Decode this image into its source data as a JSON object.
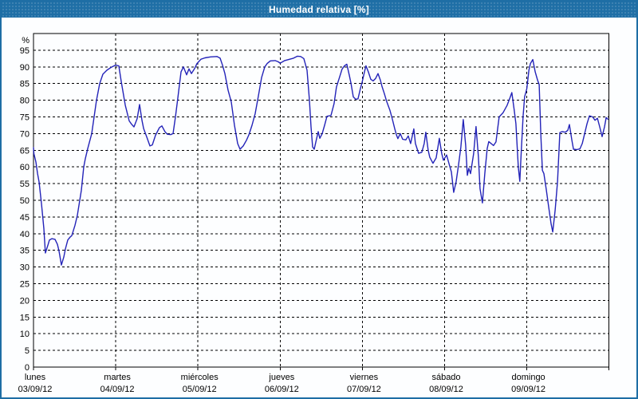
{
  "window": {
    "title": "Humedad relativa [%]"
  },
  "colors": {
    "titlebar_bg": "#1f6fa6",
    "titlebar_text": "#ffffff",
    "window_border": "#1e6ea5",
    "plot_bg": "#fdfeff",
    "grid": "#000000",
    "axis": "#000000",
    "line": "#2323b8"
  },
  "chart_data": {
    "type": "line",
    "title": "Humedad relativa [%]",
    "ylabel": "%",
    "xlabel": "",
    "ylim": [
      0,
      100
    ],
    "yticks": [
      0,
      5,
      10,
      15,
      20,
      25,
      30,
      35,
      40,
      45,
      50,
      55,
      60,
      65,
      70,
      75,
      80,
      85,
      90,
      95
    ],
    "grid": true,
    "grid_style": "dashed",
    "legend": false,
    "x_unit": "days_from_monday",
    "xlim": [
      0,
      7
    ],
    "xticklabels": [
      {
        "day": "lunes",
        "date": "03/09/12"
      },
      {
        "day": "martes",
        "date": "04/09/12"
      },
      {
        "day": "miércoles",
        "date": "05/09/12"
      },
      {
        "day": "jueves",
        "date": "06/09/12"
      },
      {
        "day": "viernes",
        "date": "07/09/12"
      },
      {
        "day": "sábado",
        "date": "08/09/12"
      },
      {
        "day": "domingo",
        "date": "09/09/12"
      }
    ],
    "series": [
      {
        "name": "Humedad relativa [%]",
        "points": [
          [
            0.0,
            65.8
          ],
          [
            0.005,
            64.0
          ],
          [
            0.029,
            61.5
          ],
          [
            0.049,
            58.0
          ],
          [
            0.068,
            55.5
          ],
          [
            0.097,
            49.0
          ],
          [
            0.126,
            41.5
          ],
          [
            0.145,
            34.2
          ],
          [
            0.175,
            36.5
          ],
          [
            0.194,
            38.1
          ],
          [
            0.223,
            38.5
          ],
          [
            0.262,
            38.3
          ],
          [
            0.291,
            36.8
          ],
          [
            0.31,
            34.8
          ],
          [
            0.339,
            30.6
          ],
          [
            0.369,
            33.0
          ],
          [
            0.388,
            35.4
          ],
          [
            0.417,
            38.1
          ],
          [
            0.446,
            39.0
          ],
          [
            0.466,
            39.4
          ],
          [
            0.504,
            42.5
          ],
          [
            0.533,
            45.5
          ],
          [
            0.563,
            50.0
          ],
          [
            0.582,
            53.0
          ],
          [
            0.611,
            60.0
          ],
          [
            0.63,
            62.5
          ],
          [
            0.66,
            65.5
          ],
          [
            0.708,
            70.0
          ],
          [
            0.737,
            75.0
          ],
          [
            0.766,
            80.0
          ],
          [
            0.805,
            85.0
          ],
          [
            0.844,
            87.8
          ],
          [
            0.892,
            89.0
          ],
          [
            0.941,
            89.8
          ],
          [
            0.97,
            90.2
          ],
          [
            1.0,
            90.5
          ],
          [
            1.038,
            90.3
          ],
          [
            1.068,
            85.5
          ],
          [
            1.116,
            78.5
          ],
          [
            1.164,
            73.8
          ],
          [
            1.193,
            72.8
          ],
          [
            1.222,
            72.0
          ],
          [
            1.261,
            74.5
          ],
          [
            1.29,
            78.7
          ],
          [
            1.319,
            74.0
          ],
          [
            1.339,
            71.5
          ],
          [
            1.377,
            69.0
          ],
          [
            1.416,
            66.3
          ],
          [
            1.445,
            66.6
          ],
          [
            1.484,
            69.5
          ],
          [
            1.532,
            71.8
          ],
          [
            1.562,
            72.3
          ],
          [
            1.6,
            70.5
          ],
          [
            1.629,
            69.8
          ],
          [
            1.668,
            69.7
          ],
          [
            1.697,
            70.0
          ],
          [
            1.726,
            75.0
          ],
          [
            1.755,
            80.5
          ],
          [
            1.794,
            88.5
          ],
          [
            1.823,
            90.0
          ],
          [
            1.862,
            87.6
          ],
          [
            1.891,
            89.4
          ],
          [
            1.92,
            88.0
          ],
          [
            1.959,
            89.5
          ],
          [
            1.988,
            91.0
          ],
          [
            2.037,
            92.3
          ],
          [
            2.085,
            92.7
          ],
          [
            2.153,
            93.0
          ],
          [
            2.231,
            93.1
          ],
          [
            2.27,
            92.6
          ],
          [
            2.299,
            90.5
          ],
          [
            2.328,
            88.0
          ],
          [
            2.367,
            83.0
          ],
          [
            2.405,
            79.5
          ],
          [
            2.444,
            72.5
          ],
          [
            2.483,
            67.0
          ],
          [
            2.512,
            65.3
          ],
          [
            2.551,
            66.3
          ],
          [
            2.59,
            68.0
          ],
          [
            2.619,
            69.6
          ],
          [
            2.658,
            72.5
          ],
          [
            2.696,
            76.0
          ],
          [
            2.735,
            81.3
          ],
          [
            2.774,
            86.8
          ],
          [
            2.813,
            90.0
          ],
          [
            2.842,
            91.0
          ],
          [
            2.881,
            91.8
          ],
          [
            2.939,
            91.9
          ],
          [
            2.978,
            91.5
          ],
          [
            3.0,
            91.1
          ],
          [
            3.055,
            91.9
          ],
          [
            3.104,
            92.2
          ],
          [
            3.162,
            92.6
          ],
          [
            3.21,
            93.2
          ],
          [
            3.249,
            93.1
          ],
          [
            3.288,
            92.5
          ],
          [
            3.327,
            89.0
          ],
          [
            3.356,
            80.0
          ],
          [
            3.375,
            72.0
          ],
          [
            3.395,
            66.0
          ],
          [
            3.414,
            65.3
          ],
          [
            3.443,
            68.5
          ],
          [
            3.463,
            70.6
          ],
          [
            3.482,
            68.6
          ],
          [
            3.511,
            70.0
          ],
          [
            3.54,
            72.5
          ],
          [
            3.569,
            75.2
          ],
          [
            3.618,
            75.4
          ],
          [
            3.656,
            79.0
          ],
          [
            3.685,
            84.0
          ],
          [
            3.724,
            87.0
          ],
          [
            3.753,
            89.3
          ],
          [
            3.782,
            90.3
          ],
          [
            3.811,
            90.8
          ],
          [
            3.841,
            87.5
          ],
          [
            3.86,
            85.2
          ],
          [
            3.889,
            81.0
          ],
          [
            3.918,
            80.3
          ],
          [
            3.947,
            80.4
          ],
          [
            3.976,
            83.5
          ],
          [
            3.996,
            85.3
          ],
          [
            4.025,
            88.5
          ],
          [
            4.044,
            90.3
          ],
          [
            4.073,
            88.5
          ],
          [
            4.102,
            86.3
          ],
          [
            4.131,
            85.8
          ],
          [
            4.16,
            86.5
          ],
          [
            4.19,
            88.0
          ],
          [
            4.219,
            86.0
          ],
          [
            4.238,
            84.2
          ],
          [
            4.267,
            82.0
          ],
          [
            4.296,
            79.6
          ],
          [
            4.335,
            77.0
          ],
          [
            4.364,
            74.4
          ],
          [
            4.393,
            71.5
          ],
          [
            4.413,
            69.7
          ],
          [
            4.432,
            68.5
          ],
          [
            4.461,
            70.0
          ],
          [
            4.49,
            68.3
          ],
          [
            4.529,
            68.1
          ],
          [
            4.558,
            69.3
          ],
          [
            4.587,
            67.0
          ],
          [
            4.626,
            71.4
          ],
          [
            4.645,
            67.0
          ],
          [
            4.684,
            64.1
          ],
          [
            4.723,
            64.4
          ],
          [
            4.752,
            67.0
          ],
          [
            4.771,
            70.4
          ],
          [
            4.8,
            65.0
          ],
          [
            4.82,
            62.9
          ],
          [
            4.858,
            61.1
          ],
          [
            4.897,
            62.7
          ],
          [
            4.936,
            68.6
          ],
          [
            4.965,
            64.0
          ],
          [
            4.985,
            62.0
          ],
          [
            5.024,
            63.6
          ],
          [
            5.053,
            61.0
          ],
          [
            5.082,
            58.5
          ],
          [
            5.111,
            52.4
          ],
          [
            5.14,
            55.5
          ],
          [
            5.169,
            60.5
          ],
          [
            5.198,
            66.0
          ],
          [
            5.227,
            74.2
          ],
          [
            5.256,
            66.5
          ],
          [
            5.276,
            57.5
          ],
          [
            5.295,
            59.6
          ],
          [
            5.315,
            58.0
          ],
          [
            5.353,
            64.0
          ],
          [
            5.382,
            72.1
          ],
          [
            5.411,
            63.0
          ],
          [
            5.431,
            53.5
          ],
          [
            5.46,
            49.2
          ],
          [
            5.489,
            58.0
          ],
          [
            5.518,
            65.5
          ],
          [
            5.537,
            67.6
          ],
          [
            5.566,
            67.0
          ],
          [
            5.595,
            66.4
          ],
          [
            5.625,
            67.5
          ],
          [
            5.663,
            75.0
          ],
          [
            5.712,
            76.3
          ],
          [
            5.76,
            78.5
          ],
          [
            5.799,
            81.0
          ],
          [
            5.818,
            82.3
          ],
          [
            5.847,
            77.0
          ],
          [
            5.867,
            73.0
          ],
          [
            5.896,
            60.0
          ],
          [
            5.915,
            55.7
          ],
          [
            5.934,
            65.5
          ],
          [
            5.954,
            75.1
          ],
          [
            5.973,
            81.0
          ],
          [
            6.0,
            83.5
          ],
          [
            6.025,
            89.0
          ],
          [
            6.044,
            91.0
          ],
          [
            6.073,
            92.2
          ],
          [
            6.102,
            88.5
          ],
          [
            6.131,
            86.0
          ],
          [
            6.15,
            84.7
          ],
          [
            6.17,
            70.0
          ],
          [
            6.189,
            59.0
          ],
          [
            6.208,
            58.0
          ],
          [
            6.237,
            53.2
          ],
          [
            6.266,
            48.0
          ],
          [
            6.295,
            43.0
          ],
          [
            6.315,
            40.5
          ],
          [
            6.344,
            47.0
          ],
          [
            6.373,
            55.6
          ],
          [
            6.402,
            70.3
          ],
          [
            6.431,
            70.6
          ],
          [
            6.47,
            70.4
          ],
          [
            6.499,
            71.0
          ],
          [
            6.518,
            72.7
          ],
          [
            6.548,
            68.0
          ],
          [
            6.567,
            65.3
          ],
          [
            6.606,
            65.2
          ],
          [
            6.645,
            65.4
          ],
          [
            6.674,
            67.0
          ],
          [
            6.703,
            70.0
          ],
          [
            6.732,
            73.0
          ],
          [
            6.761,
            75.3
          ],
          [
            6.8,
            75.0
          ],
          [
            6.829,
            74.0
          ],
          [
            6.858,
            74.6
          ],
          [
            6.887,
            72.0
          ],
          [
            6.916,
            69.1
          ],
          [
            6.945,
            72.0
          ],
          [
            6.965,
            74.8
          ],
          [
            6.985,
            74.3
          ]
        ]
      }
    ]
  }
}
